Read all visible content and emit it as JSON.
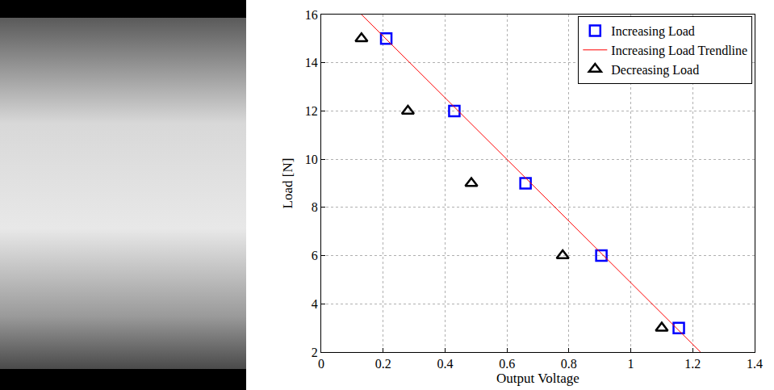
{
  "chart_data": {
    "type": "scatter",
    "x_label": "Output Voltage",
    "y_label": "Load [N]",
    "xlim": [
      0,
      1.4
    ],
    "xticks": [
      0,
      0.2,
      0.4,
      0.6,
      0.8,
      1,
      1.2,
      1.4
    ],
    "ylim": [
      2,
      16
    ],
    "yticks": [
      2,
      4,
      6,
      8,
      10,
      12,
      14,
      16
    ],
    "grid": true,
    "legend": "upper right",
    "series": [
      {
        "name": "Increasing Load",
        "type": "scatter",
        "color": "#0000ff",
        "marker": "square-open",
        "x": [
          0.21,
          0.43,
          0.66,
          0.905,
          1.155
        ],
        "values": [
          15,
          12,
          9,
          6,
          3
        ]
      },
      {
        "name": "Increasing Load Trendline",
        "type": "line",
        "color": "#ff0000",
        "line_style": "solid",
        "x": [
          0.13,
          1.225
        ],
        "values": [
          16,
          2
        ]
      },
      {
        "name": "Decreasing Load",
        "type": "scatter",
        "color": "#000000",
        "marker": "triangle-up-open",
        "x": [
          0.13,
          0.28,
          0.485,
          0.78,
          1.1
        ],
        "values": [
          15,
          12,
          9,
          6,
          3
        ]
      }
    ]
  }
}
